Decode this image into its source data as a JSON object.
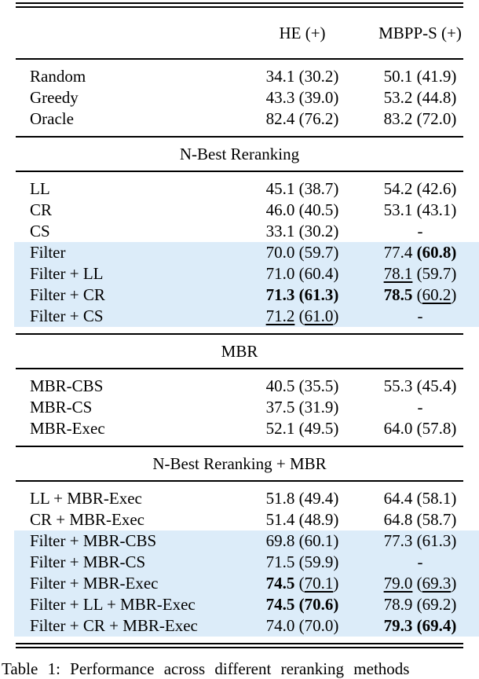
{
  "table": {
    "header": {
      "he": "HE (+)",
      "mbpp": "MBPP-S (+)"
    },
    "punct": {
      "open": "(",
      "close": ")"
    },
    "sections": [
      {
        "rows": [
          {
            "label": "Random",
            "he": {
              "t": "34.1",
              "p": "30.2"
            },
            "mbpp": {
              "t": "50.1",
              "p": "41.9"
            }
          },
          {
            "label": "Greedy",
            "he": {
              "t": "43.3",
              "p": "39.0"
            },
            "mbpp": {
              "t": "53.2",
              "p": "44.8"
            }
          },
          {
            "label": "Oracle",
            "he": {
              "t": "82.4",
              "p": "76.2"
            },
            "mbpp": {
              "t": "83.2",
              "p": "72.0"
            }
          }
        ]
      },
      {
        "title": "N-Best Reranking",
        "rows": [
          {
            "label": "LL",
            "he": {
              "t": "45.1",
              "p": "38.7"
            },
            "mbpp": {
              "t": "54.2",
              "p": "42.6"
            }
          },
          {
            "label": "CR",
            "he": {
              "t": "46.0",
              "p": "40.5"
            },
            "mbpp": {
              "t": "53.1",
              "p": "43.1"
            }
          },
          {
            "label": "CS",
            "he": {
              "t": "33.1",
              "p": "30.2"
            },
            "mbpp": {
              "t": "-"
            }
          },
          {
            "label": "Filter",
            "hl": true,
            "he": {
              "t": "70.0",
              "p": "59.7"
            },
            "mbpp": {
              "t": "77.4",
              "p": "60.8",
              "ps": "bold"
            }
          },
          {
            "label": "Filter + LL",
            "hl": true,
            "he": {
              "t": "71.0",
              "p": "60.4"
            },
            "mbpp": {
              "t": "78.1",
              "ts": "underline",
              "p": "59.7"
            }
          },
          {
            "label": "Filter + CR",
            "hl": true,
            "he": {
              "t": "71.3",
              "ts": "bold",
              "p": "61.3",
              "ps": "bold"
            },
            "mbpp": {
              "t": "78.5",
              "ts": "bold",
              "p": "60.2",
              "ps": "underline"
            }
          },
          {
            "label": "Filter + CS",
            "hl": true,
            "he": {
              "t": "71.2",
              "ts": "underline",
              "p": "61.0",
              "ps": "underline"
            },
            "mbpp": {
              "t": "-"
            }
          }
        ]
      },
      {
        "title": "MBR",
        "rows": [
          {
            "label": "MBR-CBS",
            "he": {
              "t": "40.5",
              "p": "35.5"
            },
            "mbpp": {
              "t": "55.3",
              "p": "45.4"
            }
          },
          {
            "label": "MBR-CS",
            "he": {
              "t": "37.5",
              "p": "31.9"
            },
            "mbpp": {
              "t": "-"
            }
          },
          {
            "label": "MBR-Exec",
            "he": {
              "t": "52.1",
              "p": "49.5"
            },
            "mbpp": {
              "t": "64.0",
              "p": "57.8"
            }
          }
        ]
      },
      {
        "title": "N-Best Reranking + MBR",
        "rows": [
          {
            "label": "LL + MBR-Exec",
            "he": {
              "t": "51.8",
              "p": "49.4"
            },
            "mbpp": {
              "t": "64.4",
              "p": "58.1"
            }
          },
          {
            "label": "CR + MBR-Exec",
            "he": {
              "t": "51.4",
              "p": "48.9"
            },
            "mbpp": {
              "t": "64.8",
              "p": "58.7"
            }
          },
          {
            "label": "Filter + MBR-CBS",
            "hl": true,
            "he": {
              "t": "69.8",
              "p": "60.1"
            },
            "mbpp": {
              "t": "77.3",
              "p": "61.3"
            }
          },
          {
            "label": "Filter + MBR-CS",
            "hl": true,
            "he": {
              "t": "71.5",
              "p": "59.9"
            },
            "mbpp": {
              "t": "-"
            }
          },
          {
            "label": "Filter + MBR-Exec",
            "hl": true,
            "he": {
              "t": "74.5",
              "ts": "bold",
              "p": "70.1",
              "ps": "underline"
            },
            "mbpp": {
              "t": "79.0",
              "ts": "underline",
              "p": "69.3",
              "ps": "underline"
            }
          },
          {
            "label": "Filter + LL + MBR-Exec",
            "hl": true,
            "he": {
              "t": "74.5",
              "ts": "bold",
              "p": "70.6",
              "ps": "bold"
            },
            "mbpp": {
              "t": "78.9",
              "p": "69.2"
            }
          },
          {
            "label": "Filter + CR + MBR-Exec",
            "hl": true,
            "he": {
              "t": "74.0",
              "p": "70.0"
            },
            "mbpp": {
              "t": "79.3",
              "ts": "bold",
              "p": "69.4",
              "ps": "bold"
            }
          }
        ]
      }
    ]
  },
  "caption": "Table 1: Performance across different reranking methods",
  "colors": {
    "highlight_row": "#dcecf9"
  }
}
